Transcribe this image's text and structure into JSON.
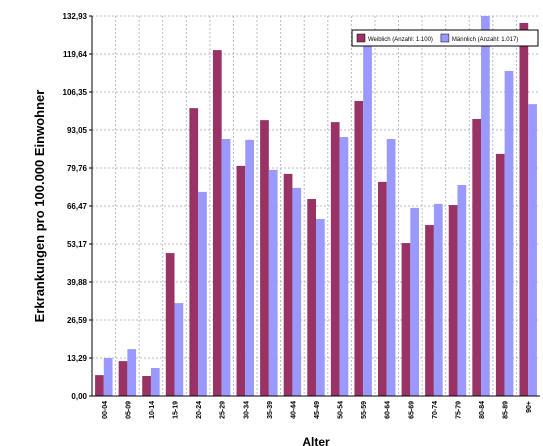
{
  "chart_data": {
    "type": "bar",
    "x_label": "Alter",
    "y_label": "Erkrankungen pro 100.000 Einwohner",
    "categories": [
      "00-04",
      "05-09",
      "10-14",
      "15-19",
      "20-24",
      "25-29",
      "30-34",
      "35-39",
      "40-44",
      "45-49",
      "50-54",
      "55-59",
      "60-64",
      "65-69",
      "70-74",
      "75-79",
      "80-84",
      "85-89",
      "90+"
    ],
    "series": [
      {
        "name": "Weiblich (Anzahl: 1.100)",
        "color": "#993366",
        "values": [
          7.3,
          12.2,
          7.0,
          50.0,
          100.7,
          121.0,
          80.5,
          96.5,
          77.7,
          68.9,
          95.8,
          103.2,
          74.9,
          53.5,
          59.8,
          66.8,
          96.9,
          84.7,
          130.5
        ]
      },
      {
        "name": "Männlich (Anzahl: 1.017)",
        "color": "#9999ff",
        "values": [
          13.3,
          16.4,
          9.8,
          32.5,
          71.4,
          89.9,
          89.6,
          79.1,
          72.8,
          61.9,
          90.6,
          122.8,
          89.9,
          65.8,
          67.2,
          73.8,
          133.5,
          113.7,
          102.1
        ]
      }
    ],
    "ylim": [
      0,
      132.93
    ],
    "yticks": [
      {
        "value": 0,
        "label": "0,00"
      },
      {
        "value": 13.29,
        "label": "13,29"
      },
      {
        "value": 26.59,
        "label": "26,59"
      },
      {
        "value": 39.88,
        "label": "39,88"
      },
      {
        "value": 53.17,
        "label": "53,17"
      },
      {
        "value": 66.47,
        "label": "66,47"
      },
      {
        "value": 79.76,
        "label": "79,76"
      },
      {
        "value": 93.05,
        "label": "93,05"
      },
      {
        "value": 106.35,
        "label": "106,35"
      },
      {
        "value": 119.64,
        "label": "119,64"
      },
      {
        "value": 132.93,
        "label": "132,93"
      }
    ],
    "grid": true,
    "legend": "top-right"
  }
}
